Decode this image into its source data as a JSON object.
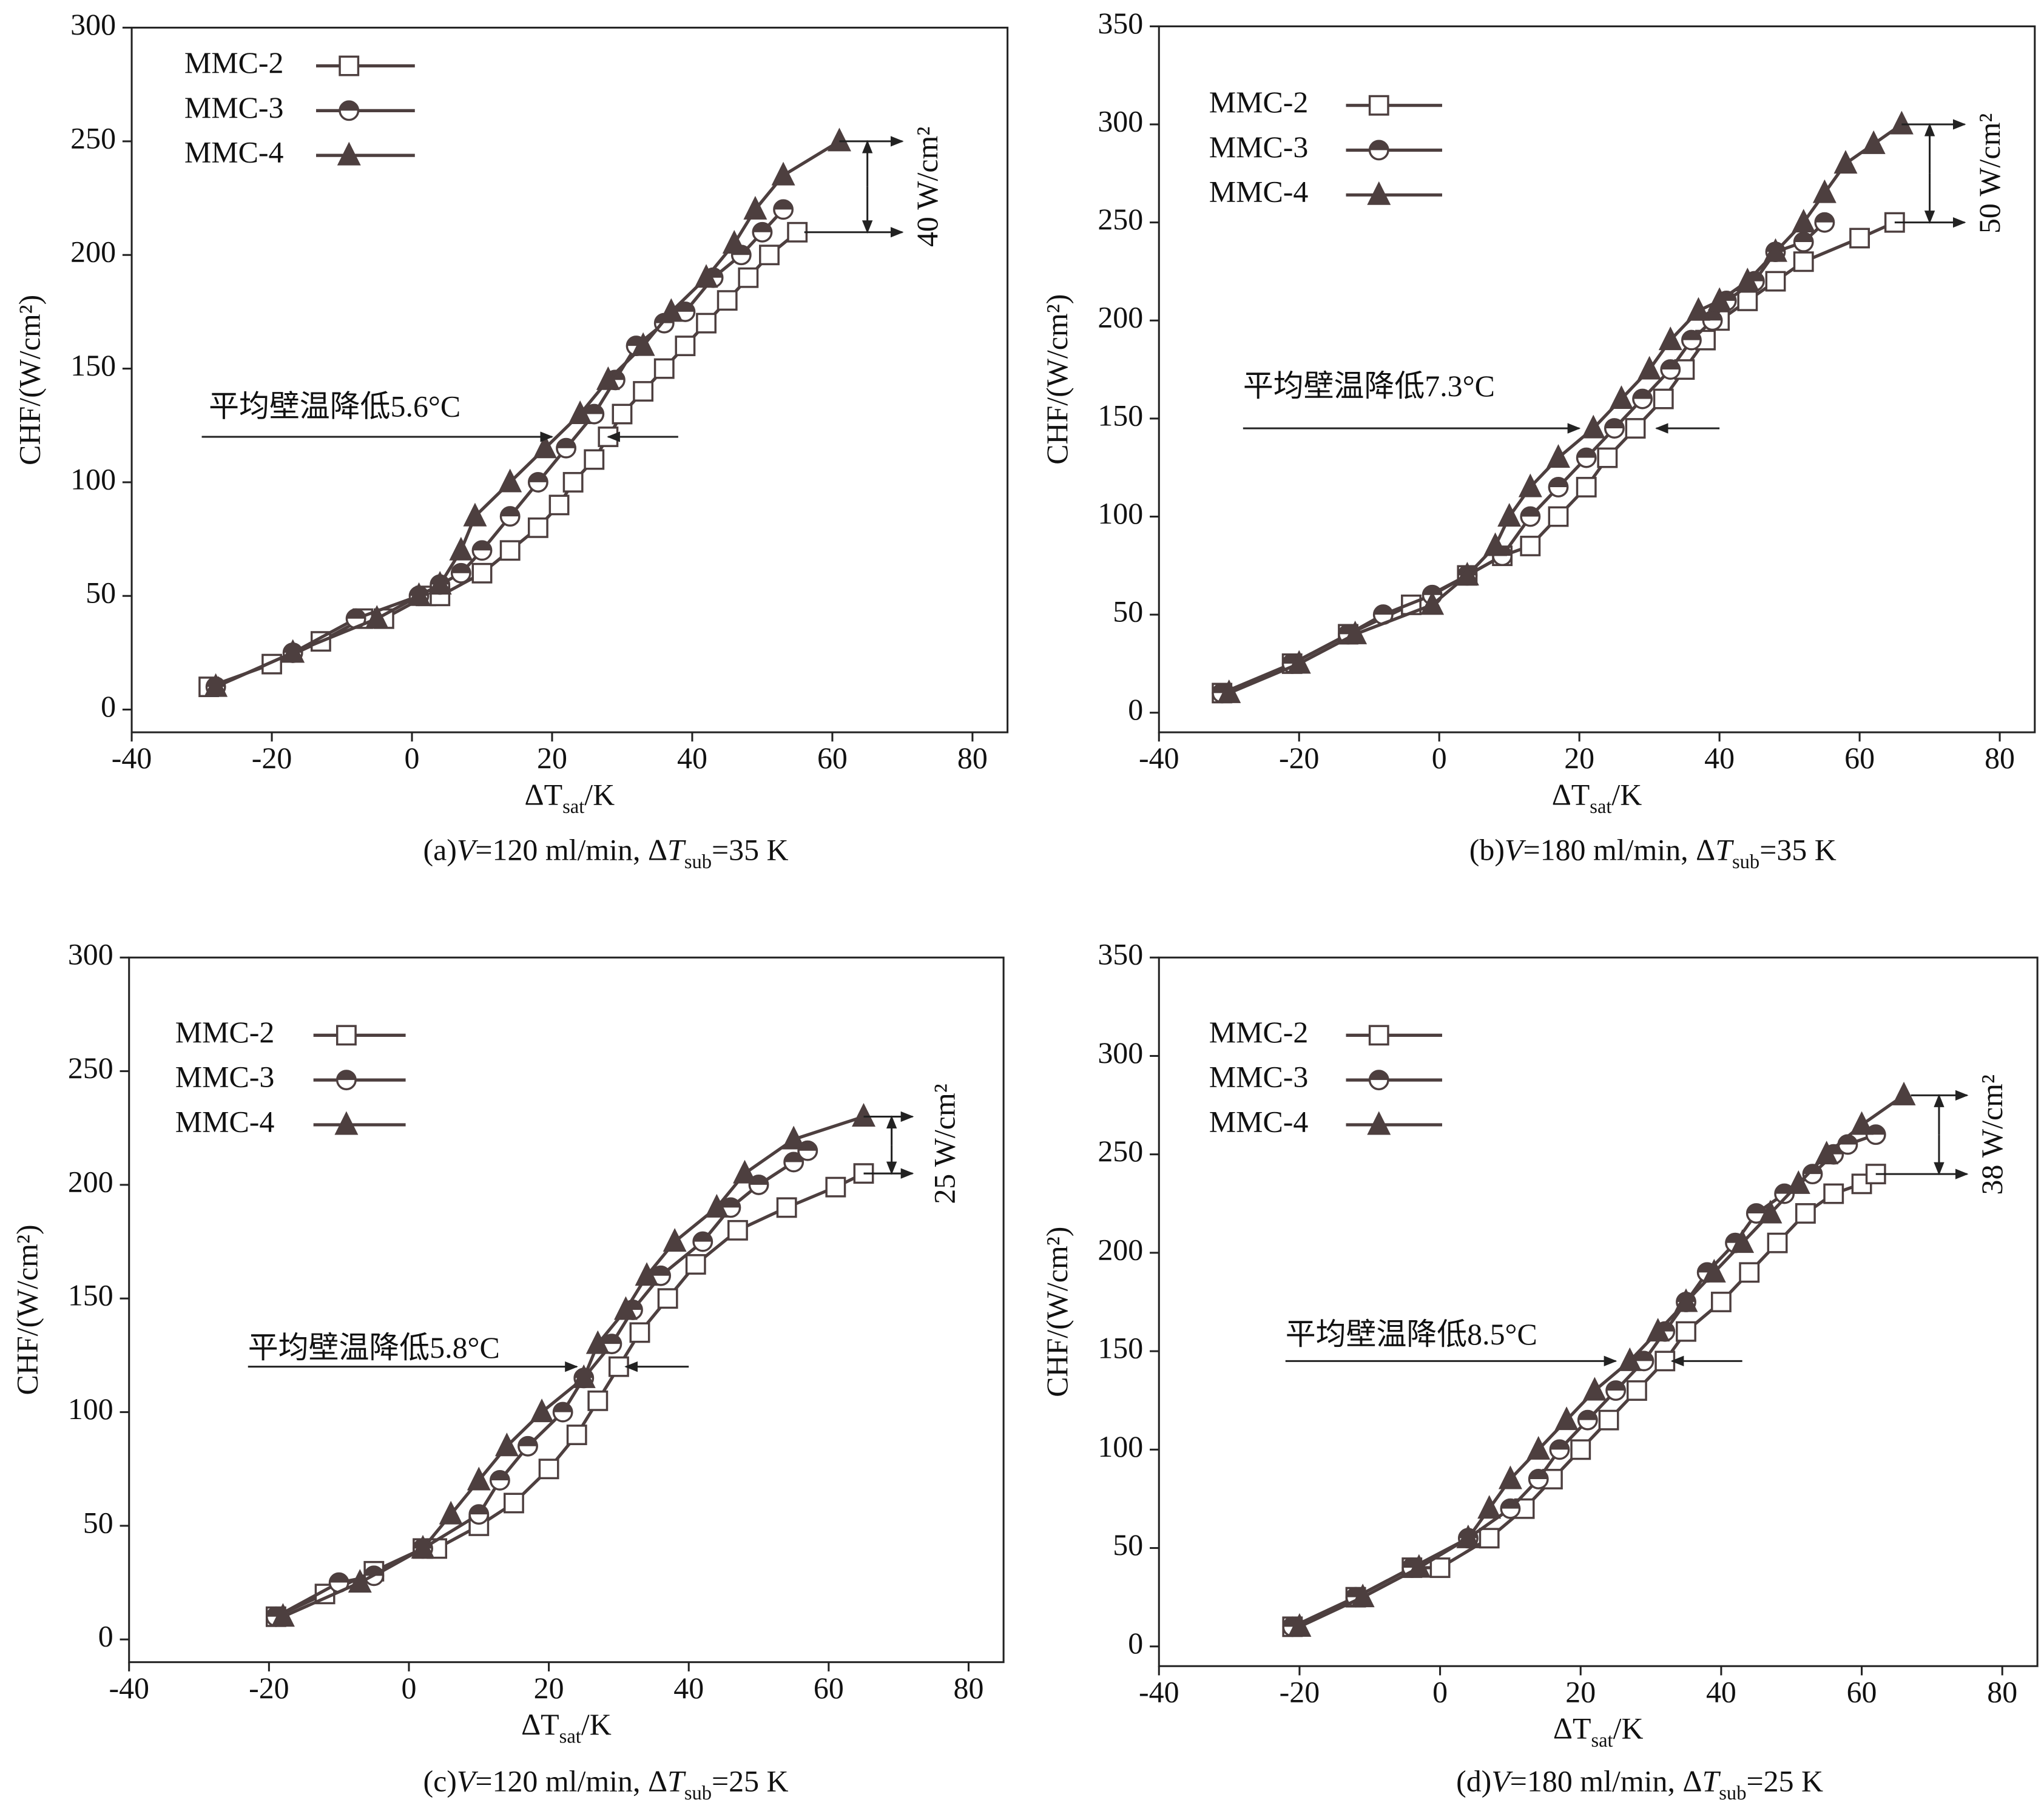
{
  "chart_data": [
    {
      "type": "line",
      "ylabel": "CHF/(W/cm²)",
      "xlabel": [
        "ΔT",
        "sat",
        "/K"
      ],
      "caption": [
        "(a)",
        "V",
        "=120 ml/min, Δ",
        "T",
        "sub",
        "=35 K"
      ],
      "xlim": [
        -40,
        85
      ],
      "ylim": [
        -10,
        300
      ],
      "xticks": [
        -40,
        -20,
        0,
        20,
        40,
        60,
        80
      ],
      "yticks": [
        0,
        50,
        100,
        150,
        200,
        250,
        300
      ],
      "legend": "upper left",
      "annotations": [
        "平均壁温降低5.6°C",
        "40 W/cm²"
      ],
      "series": [
        {
          "name": "MMC-2",
          "marker": "square",
          "color": "#4d3f3f",
          "x": [
            -29,
            -20,
            -13,
            -7,
            -4,
            2,
            4,
            10,
            14,
            18,
            21,
            23,
            26,
            28,
            30,
            33,
            36,
            39,
            42,
            45,
            48,
            51,
            55
          ],
          "values": [
            10,
            20,
            30,
            40,
            40,
            50,
            50,
            60,
            70,
            80,
            90,
            100,
            110,
            120,
            130,
            140,
            150,
            160,
            170,
            180,
            190,
            200,
            210
          ]
        },
        {
          "name": "MMC-3",
          "marker": "circle-half",
          "color": "#4d3f3f",
          "x": [
            -28,
            -17,
            -8,
            1,
            4,
            7,
            10,
            14,
            18,
            22,
            26,
            29,
            32,
            36,
            39,
            43,
            47,
            50,
            53
          ],
          "values": [
            10,
            25,
            40,
            50,
            55,
            60,
            70,
            85,
            100,
            115,
            130,
            145,
            160,
            170,
            175,
            190,
            200,
            210,
            220
          ]
        },
        {
          "name": "MMC-4",
          "marker": "triangle",
          "color": "#4d3f3f",
          "x": [
            -28,
            -17,
            -5,
            1,
            4,
            7,
            9,
            14,
            19,
            24,
            28,
            33,
            37,
            42,
            46,
            49,
            53,
            61
          ],
          "values": [
            10,
            25,
            40,
            50,
            55,
            70,
            85,
            100,
            115,
            130,
            145,
            160,
            175,
            190,
            205,
            220,
            235,
            250
          ]
        }
      ]
    },
    {
      "type": "line",
      "ylabel": "CHF/(W/cm²)",
      "xlabel": [
        "ΔT",
        "sat",
        "/K"
      ],
      "caption": [
        "(b)",
        "V",
        "=180 ml/min, Δ",
        "T",
        "sub",
        "=35 K"
      ],
      "xlim": [
        -40,
        85
      ],
      "ylim": [
        -10,
        350
      ],
      "xticks": [
        -40,
        -20,
        0,
        20,
        40,
        60,
        80
      ],
      "yticks": [
        0,
        50,
        100,
        150,
        200,
        250,
        300,
        350
      ],
      "legend": "upper left",
      "annotations": [
        "平均壁温降低7.3°C",
        "50 W/cm²"
      ],
      "series": [
        {
          "name": "MMC-2",
          "marker": "square",
          "color": "#4d3f3f",
          "x": [
            -31,
            -21,
            -13,
            -4,
            4,
            9,
            13,
            17,
            21,
            24,
            28,
            32,
            35,
            38,
            40,
            44,
            48,
            52,
            60,
            65
          ],
          "values": [
            10,
            25,
            40,
            55,
            70,
            80,
            85,
            100,
            115,
            130,
            145,
            160,
            175,
            190,
            200,
            210,
            220,
            230,
            242,
            250
          ]
        },
        {
          "name": "MMC-3",
          "marker": "circle-half",
          "color": "#4d3f3f",
          "x": [
            -31,
            -21,
            -13,
            -8,
            -1,
            4,
            9,
            13,
            17,
            21,
            25,
            29,
            33,
            36,
            39,
            41,
            45,
            48,
            52,
            55
          ],
          "values": [
            10,
            25,
            40,
            50,
            60,
            70,
            80,
            100,
            115,
            130,
            145,
            160,
            175,
            190,
            200,
            210,
            220,
            235,
            240,
            250
          ]
        },
        {
          "name": "MMC-4",
          "marker": "triangle",
          "color": "#4d3f3f",
          "x": [
            -30,
            -20,
            -12,
            -1,
            4,
            8,
            10,
            13,
            17,
            22,
            26,
            30,
            33,
            37,
            40,
            44,
            48,
            52,
            55,
            58,
            62,
            66
          ],
          "values": [
            10,
            25,
            40,
            55,
            70,
            85,
            100,
            115,
            130,
            145,
            160,
            175,
            190,
            205,
            210,
            220,
            235,
            250,
            265,
            280,
            290,
            300
          ]
        }
      ]
    },
    {
      "type": "line",
      "ylabel": "CHF/(W/cm²)",
      "xlabel": [
        "ΔT",
        "sat",
        "/K"
      ],
      "caption": [
        "(c)",
        "V",
        "=120 ml/min, Δ",
        "T",
        "sub",
        "=25 K"
      ],
      "xlim": [
        -40,
        85
      ],
      "ylim": [
        -10,
        300
      ],
      "xticks": [
        -40,
        -20,
        0,
        20,
        40,
        60,
        80
      ],
      "yticks": [
        0,
        50,
        100,
        150,
        200,
        250,
        300
      ],
      "legend": "upper left",
      "annotations": [
        "平均壁温降低5.8°C",
        "25 W/cm²"
      ],
      "series": [
        {
          "name": "MMC-2",
          "marker": "square",
          "color": "#4d3f3f",
          "x": [
            -19,
            -12,
            -5,
            2,
            4,
            10,
            15,
            20,
            24,
            27,
            30,
            33,
            37,
            41,
            47,
            54,
            61,
            65
          ],
          "values": [
            10,
            20,
            30,
            40,
            40,
            50,
            60,
            75,
            90,
            105,
            120,
            135,
            150,
            165,
            180,
            190,
            199,
            205
          ]
        },
        {
          "name": "MMC-3",
          "marker": "circle-half",
          "color": "#4d3f3f",
          "x": [
            -19,
            -10,
            -5,
            2,
            10,
            13,
            17,
            22,
            25,
            29,
            32,
            36,
            42,
            46,
            50,
            55,
            57
          ],
          "values": [
            10,
            25,
            28,
            40,
            55,
            70,
            85,
            100,
            115,
            130,
            145,
            160,
            175,
            190,
            200,
            210,
            215
          ]
        },
        {
          "name": "MMC-4",
          "marker": "triangle",
          "color": "#4d3f3f",
          "x": [
            -18,
            -7,
            2,
            6,
            10,
            14,
            19,
            25,
            27,
            31,
            34,
            38,
            44,
            48,
            55,
            65
          ],
          "values": [
            10,
            25,
            40,
            55,
            70,
            85,
            100,
            115,
            130,
            145,
            160,
            175,
            190,
            205,
            220,
            230
          ]
        }
      ]
    },
    {
      "type": "line",
      "ylabel": "CHF/(W/cm²)",
      "xlabel": [
        "ΔT",
        "sat",
        "/K"
      ],
      "caption": [
        "(d)",
        "V",
        "=180 ml/min, Δ",
        "T",
        "sub",
        "=25 K"
      ],
      "xlim": [
        -40,
        85
      ],
      "ylim": [
        -10,
        350
      ],
      "xticks": [
        -40,
        -20,
        0,
        20,
        40,
        60,
        80
      ],
      "yticks": [
        0,
        50,
        100,
        150,
        200,
        250,
        300,
        350
      ],
      "legend": "upper left",
      "annotations": [
        "平均壁温降低8.5°C",
        "38 W/cm²"
      ],
      "series": [
        {
          "name": "MMC-2",
          "marker": "square",
          "color": "#4d3f3f",
          "x": [
            -21,
            -12,
            -4,
            0,
            7,
            12,
            16,
            20,
            24,
            28,
            32,
            35,
            40,
            44,
            48,
            52,
            56,
            60,
            62
          ],
          "values": [
            10,
            25,
            40,
            40,
            55,
            70,
            85,
            100,
            115,
            130,
            145,
            160,
            175,
            190,
            205,
            220,
            230,
            235,
            240
          ]
        },
        {
          "name": "MMC-3",
          "marker": "circle-half",
          "color": "#4d3f3f",
          "x": [
            -21,
            -12,
            -4,
            4,
            10,
            14,
            17,
            21,
            25,
            29,
            32,
            35,
            38,
            42,
            45,
            49,
            53,
            56,
            58,
            62
          ],
          "values": [
            10,
            25,
            40,
            55,
            70,
            85,
            100,
            115,
            130,
            145,
            160,
            175,
            190,
            205,
            220,
            230,
            240,
            250,
            255,
            260
          ]
        },
        {
          "name": "MMC-4",
          "marker": "triangle",
          "color": "#4d3f3f",
          "x": [
            -20,
            -11,
            -3,
            4,
            7,
            10,
            14,
            18,
            22,
            27,
            31,
            35,
            39,
            43,
            47,
            51,
            55,
            60,
            66
          ],
          "values": [
            10,
            25,
            40,
            55,
            70,
            85,
            100,
            115,
            130,
            145,
            160,
            175,
            190,
            205,
            220,
            235,
            250,
            265,
            280
          ]
        }
      ]
    }
  ]
}
